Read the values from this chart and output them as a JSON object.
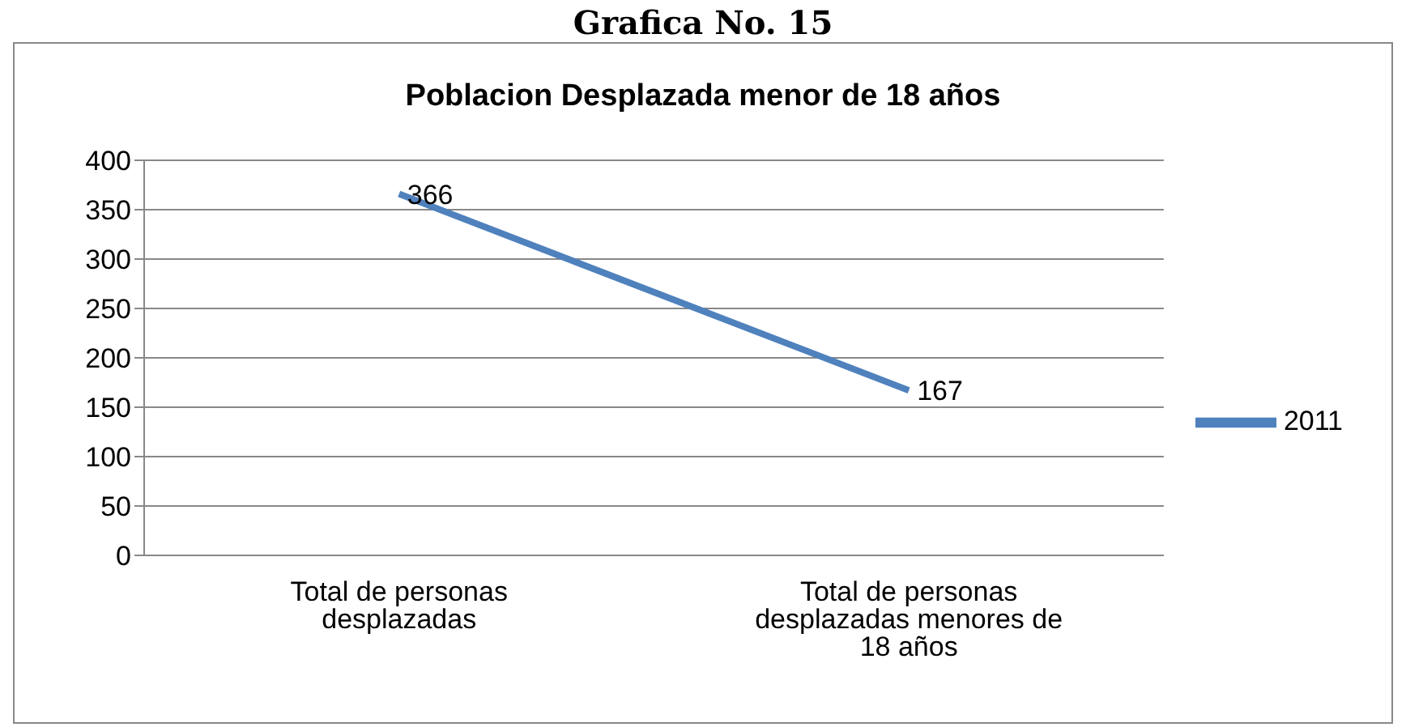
{
  "chart_data": {
    "type": "line",
    "subtitle": "Grafica No. 15",
    "title": "Poblacion Desplazada menor de 18 años",
    "categories": [
      "Total de personas desplazadas",
      "Total de personas desplazadas menores de 18 años"
    ],
    "series": [
      {
        "name": "2011",
        "color": "#4f81bd",
        "values": [
          366,
          167
        ]
      }
    ],
    "ylim": [
      0,
      400
    ],
    "yticks": [
      0,
      50,
      100,
      150,
      200,
      250,
      300,
      350,
      400
    ],
    "grid": "y",
    "legend": "right",
    "data_labels": true,
    "marker": "none"
  }
}
